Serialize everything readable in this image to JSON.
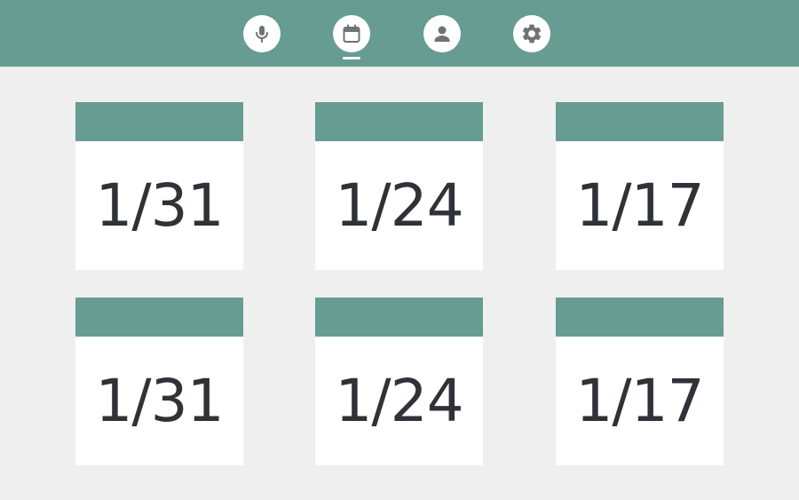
{
  "colors": {
    "accent": "#669c91",
    "background": "#efefef",
    "card": "#ffffff",
    "text": "#2f3237",
    "icon": "#6f7378"
  },
  "nav": {
    "items": [
      {
        "icon": "microphone-icon",
        "active": false
      },
      {
        "icon": "calendar-icon",
        "active": true
      },
      {
        "icon": "person-icon",
        "active": false
      },
      {
        "icon": "gear-icon",
        "active": false
      }
    ]
  },
  "cards": [
    {
      "date": "1/31"
    },
    {
      "date": "1/24"
    },
    {
      "date": "1/17"
    },
    {
      "date": "1/31"
    },
    {
      "date": "1/24"
    },
    {
      "date": "1/17"
    }
  ]
}
